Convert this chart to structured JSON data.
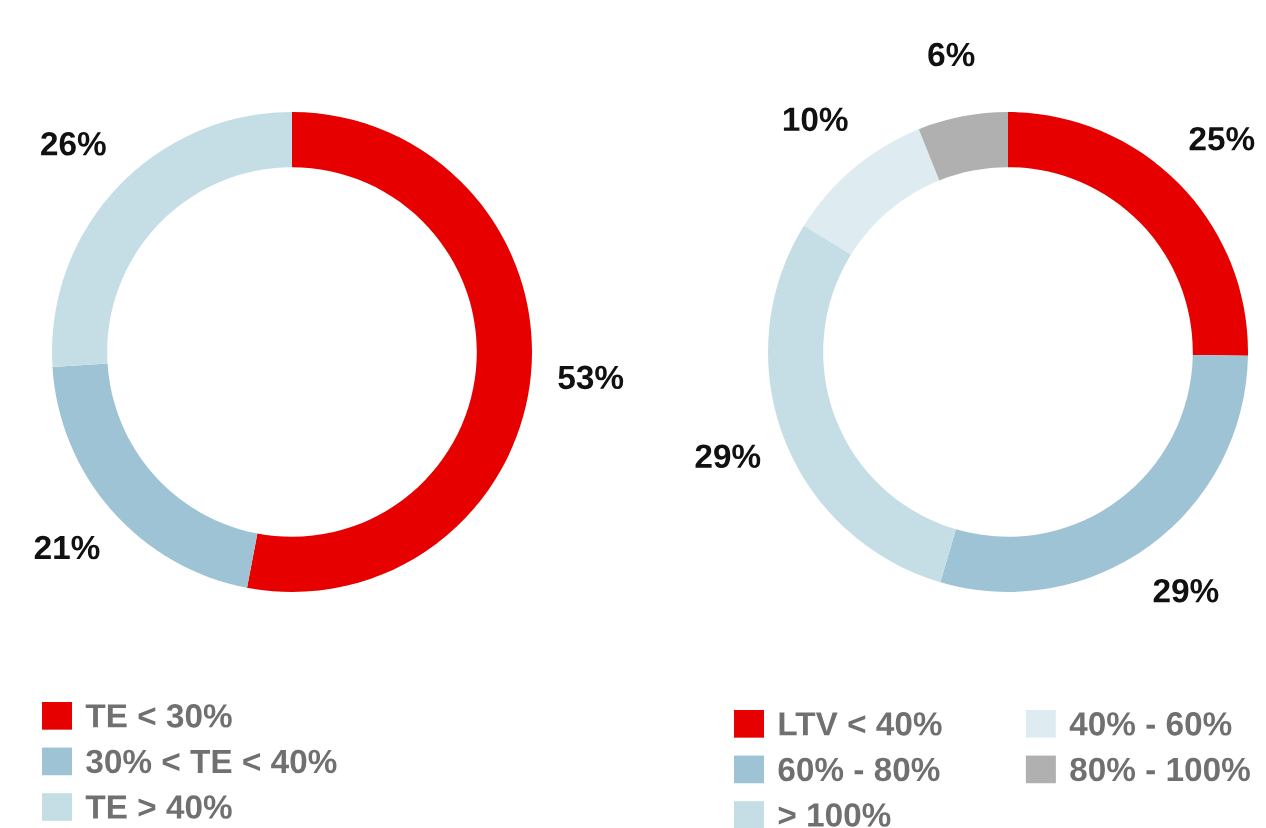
{
  "chart_data": [
    {
      "type": "donut",
      "categories": [
        "TE < 30%",
        "30% < TE < 40%",
        "TE > 40%"
      ],
      "values": [
        53,
        21,
        26
      ],
      "value_labels": [
        "53%",
        "21%",
        "26%"
      ],
      "colors": [
        "#e60000",
        "#9dc3d4",
        "#c5dee6"
      ],
      "legend": "bottom"
    },
    {
      "type": "donut",
      "categories": [
        "LTV < 40%",
        "60% - 80%",
        "> 100%",
        "40% - 60%",
        "80% - 100%"
      ],
      "values": [
        25,
        29,
        29,
        10,
        6
      ],
      "value_labels": [
        "25%",
        "29%",
        "29%",
        "10%",
        "6%"
      ],
      "colors": [
        "#e60000",
        "#9dc3d4",
        "#c5dee6",
        "#deecf1",
        "#b0b0b0"
      ],
      "legend": "bottom"
    }
  ]
}
